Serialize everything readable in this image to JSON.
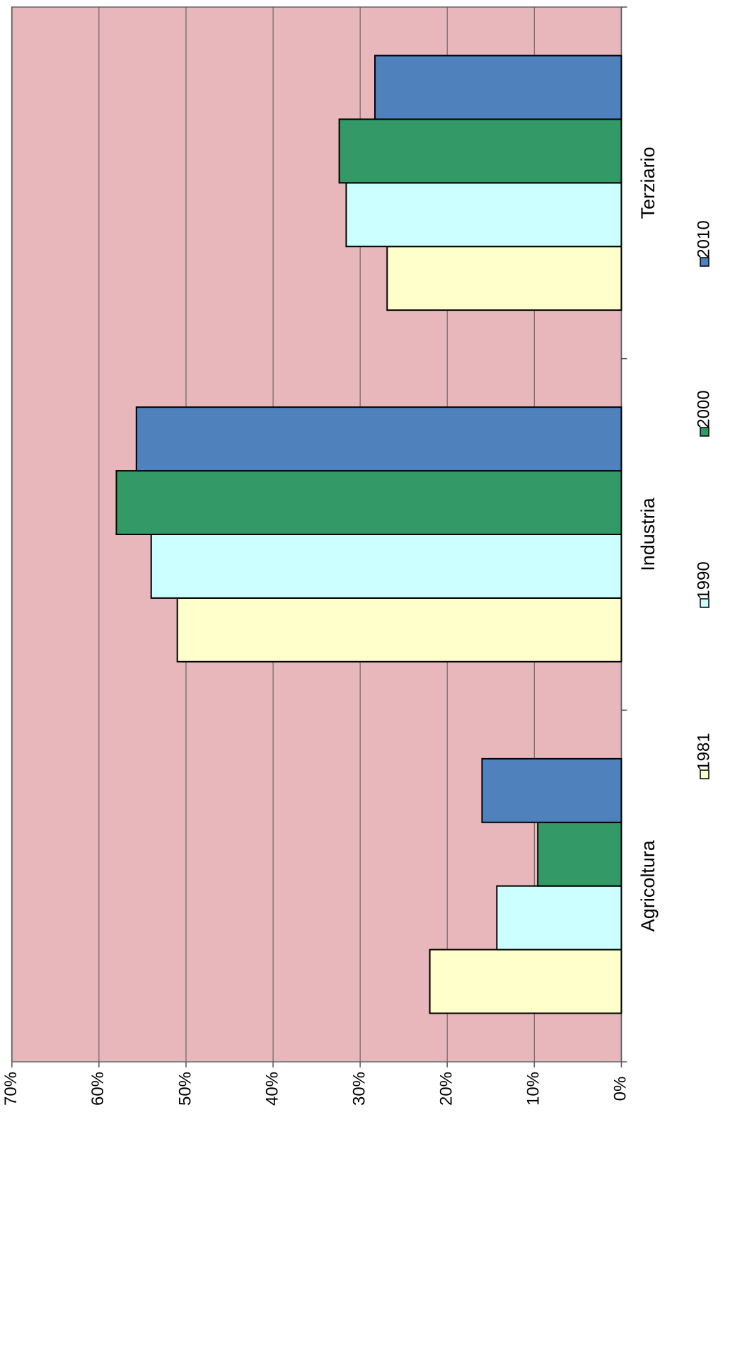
{
  "chart_data": {
    "type": "bar",
    "categories": [
      "Agricoltura",
      "Industria",
      "Terziario"
    ],
    "series": [
      {
        "name": "1981",
        "color": "#ffffcc",
        "values": [
          22.0,
          51.0,
          26.9
        ]
      },
      {
        "name": "1990",
        "color": "#ccffff",
        "values": [
          14.3,
          54.0,
          31.6
        ]
      },
      {
        "name": "2000",
        "color": "#339966",
        "values": [
          9.6,
          58.0,
          32.4
        ]
      },
      {
        "name": "2010",
        "color": "#4f81bd",
        "values": [
          16.0,
          55.7,
          28.3
        ]
      }
    ],
    "ylim": [
      0,
      70
    ],
    "yticks": [
      {
        "value": 0,
        "label": "0%"
      },
      {
        "value": 10,
        "label": "10%"
      },
      {
        "value": 20,
        "label": "20%"
      },
      {
        "value": 30,
        "label": "30%"
      },
      {
        "value": 40,
        "label": "40%"
      },
      {
        "value": 50,
        "label": "50%"
      },
      {
        "value": 60,
        "label": "60%"
      },
      {
        "value": 70,
        "label": "70%"
      }
    ],
    "grid": true,
    "legend": "bottom"
  }
}
